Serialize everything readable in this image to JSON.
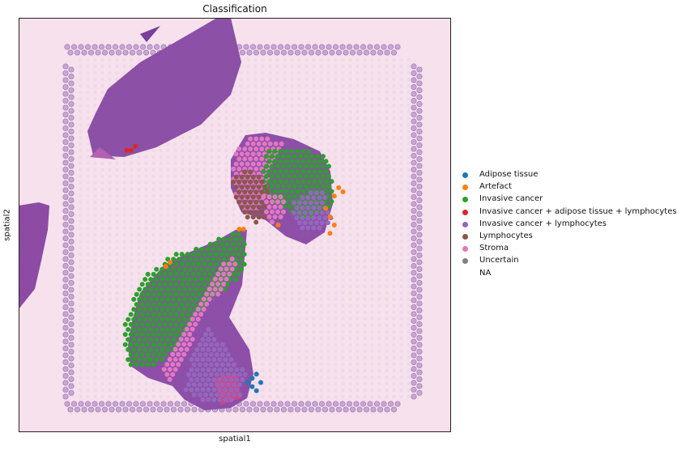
{
  "chart_data": {
    "type": "scatter",
    "title": "Classification",
    "xlabel": "spatial1",
    "ylabel": "spatial2",
    "grid": false,
    "legend_position": "right",
    "categories": [
      {
        "name": "Adipose tissue",
        "color": "#1f77b4"
      },
      {
        "name": "Artefact",
        "color": "#ff7f0e"
      },
      {
        "name": "Invasive cancer",
        "color": "#2ca02c"
      },
      {
        "name": "Invasive cancer + adipose tissue + lymphocytes",
        "color": "#d62728"
      },
      {
        "name": "Invasive cancer + lymphocytes",
        "color": "#9467bd"
      },
      {
        "name": "Lymphocytes",
        "color": "#8c564b"
      },
      {
        "name": "Stroma",
        "color": "#e377c2"
      },
      {
        "name": "Uncertain",
        "color": "#7f7f7f"
      },
      {
        "name": "NA",
        "color": "none"
      }
    ],
    "background": "H&E tissue image with fiducial spot frame",
    "regions": [
      {
        "category": "Invasive cancer",
        "polygon": [
          [
            0.25,
            0.83
          ],
          [
            0.24,
            0.74
          ],
          [
            0.29,
            0.62
          ],
          [
            0.36,
            0.57
          ],
          [
            0.43,
            0.55
          ],
          [
            0.49,
            0.52
          ],
          [
            0.52,
            0.51
          ],
          [
            0.53,
            0.6
          ],
          [
            0.49,
            0.65
          ],
          [
            0.44,
            0.68
          ],
          [
            0.4,
            0.74
          ],
          [
            0.37,
            0.79
          ],
          [
            0.32,
            0.84
          ],
          [
            0.27,
            0.85
          ]
        ]
      },
      {
        "category": "Stroma",
        "polygon": [
          [
            0.49,
            0.57
          ],
          [
            0.51,
            0.6
          ],
          [
            0.46,
            0.67
          ],
          [
            0.42,
            0.73
          ],
          [
            0.39,
            0.81
          ],
          [
            0.35,
            0.89
          ],
          [
            0.33,
            0.84
          ],
          [
            0.37,
            0.77
          ],
          [
            0.41,
            0.69
          ],
          [
            0.45,
            0.63
          ]
        ]
      },
      {
        "category": "Invasive cancer + lymphocytes",
        "polygon": [
          [
            0.44,
            0.74
          ],
          [
            0.48,
            0.8
          ],
          [
            0.53,
            0.86
          ],
          [
            0.51,
            0.92
          ],
          [
            0.43,
            0.93
          ],
          [
            0.38,
            0.9
          ],
          [
            0.4,
            0.82
          ]
        ]
      },
      {
        "category": "Stroma",
        "polygon": [
          [
            0.5,
            0.32
          ],
          [
            0.55,
            0.28
          ],
          [
            0.61,
            0.3
          ],
          [
            0.58,
            0.38
          ],
          [
            0.56,
            0.47
          ],
          [
            0.51,
            0.46
          ],
          [
            0.49,
            0.38
          ]
        ]
      },
      {
        "category": "Invasive cancer",
        "polygon": [
          [
            0.57,
            0.32
          ],
          [
            0.64,
            0.31
          ],
          [
            0.72,
            0.34
          ],
          [
            0.73,
            0.45
          ],
          [
            0.67,
            0.49
          ],
          [
            0.61,
            0.46
          ],
          [
            0.56,
            0.42
          ]
        ]
      },
      {
        "category": "Lymphocytes",
        "polygon": [
          [
            0.49,
            0.38
          ],
          [
            0.54,
            0.36
          ],
          [
            0.58,
            0.42
          ],
          [
            0.58,
            0.48
          ],
          [
            0.55,
            0.5
          ],
          [
            0.51,
            0.47
          ]
        ]
      },
      {
        "category": "Invasive cancer + lymphocytes",
        "polygon": [
          [
            0.63,
            0.44
          ],
          [
            0.7,
            0.41
          ],
          [
            0.73,
            0.49
          ],
          [
            0.68,
            0.52
          ],
          [
            0.64,
            0.5
          ]
        ]
      },
      {
        "category": "Stroma",
        "polygon": [
          [
            0.56,
            0.42
          ],
          [
            0.61,
            0.43
          ],
          [
            0.62,
            0.48
          ],
          [
            0.58,
            0.5
          ]
        ]
      }
    ],
    "point_clusters": [
      {
        "category": "Artefact",
        "points": [
          [
            0.71,
            0.46
          ],
          [
            0.72,
            0.48
          ],
          [
            0.73,
            0.5
          ],
          [
            0.72,
            0.52
          ],
          [
            0.73,
            0.43
          ],
          [
            0.74,
            0.41
          ],
          [
            0.51,
            0.51
          ],
          [
            0.52,
            0.51
          ],
          [
            0.34,
            0.6
          ],
          [
            0.35,
            0.59
          ],
          [
            0.75,
            0.42
          ],
          [
            0.6,
            0.5
          ]
        ]
      },
      {
        "category": "Adipose tissue",
        "points": [
          [
            0.53,
            0.88
          ],
          [
            0.54,
            0.89
          ],
          [
            0.55,
            0.9
          ],
          [
            0.56,
            0.88
          ],
          [
            0.55,
            0.86
          ],
          [
            0.54,
            0.87
          ]
        ]
      },
      {
        "category": "Invasive cancer + adipose tissue + lymphocytes",
        "points": [
          [
            0.25,
            0.32
          ],
          [
            0.26,
            0.32
          ],
          [
            0.27,
            0.31
          ]
        ]
      }
    ]
  }
}
